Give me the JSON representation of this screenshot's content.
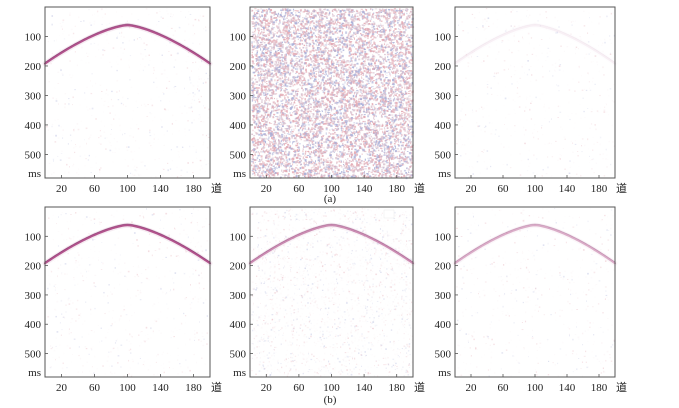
{
  "chart_data": [
    {
      "type": "heatmap",
      "row": "a",
      "column": 1,
      "content": "hyperbolic reflection event with weak noise",
      "x_ticks": [
        20,
        60,
        100,
        140,
        180
      ],
      "x_unit_label": "道",
      "y_ticks": [
        100,
        200,
        300,
        400,
        500
      ],
      "y_unit_label": "ms",
      "xlim": [
        0,
        200
      ],
      "ylim": [
        0,
        580
      ],
      "event": {
        "apex_trace": 100,
        "apex_time_ms": 62,
        "edge_time_ms": 192,
        "intensity": 1.0
      },
      "noise_level": 0.03
    },
    {
      "type": "heatmap",
      "row": "a",
      "column": 2,
      "content": "dense random noise",
      "x_ticks": [
        20,
        60,
        100,
        140,
        180
      ],
      "x_unit_label": "道",
      "y_ticks": [
        100,
        200,
        300,
        400,
        500
      ],
      "y_unit_label": "ms",
      "xlim": [
        0,
        200
      ],
      "ylim": [
        0,
        580
      ],
      "event": null,
      "noise_level": 1.0
    },
    {
      "type": "heatmap",
      "row": "a",
      "column": 3,
      "content": "residual with very faint event",
      "x_ticks": [
        20,
        60,
        100,
        140,
        180
      ],
      "x_unit_label": "道",
      "y_ticks": [
        100,
        200,
        300,
        400,
        500
      ],
      "y_unit_label": "ms",
      "xlim": [
        0,
        200
      ],
      "ylim": [
        0,
        580
      ],
      "event": {
        "apex_trace": 100,
        "apex_time_ms": 62,
        "edge_time_ms": 192,
        "intensity": 0.08
      },
      "noise_level": 0.02
    },
    {
      "type": "heatmap",
      "row": "b",
      "column": 1,
      "content": "hyperbolic reflection event with weak noise",
      "x_ticks": [
        20,
        60,
        100,
        140,
        180
      ],
      "x_unit_label": "道",
      "y_ticks": [
        100,
        200,
        300,
        400,
        500
      ],
      "y_unit_label": "ms",
      "xlim": [
        0,
        200
      ],
      "ylim": [
        0,
        580
      ],
      "event": {
        "apex_trace": 100,
        "apex_time_ms": 62,
        "edge_time_ms": 192,
        "intensity": 1.0
      },
      "noise_level": 0.03
    },
    {
      "type": "heatmap",
      "row": "b",
      "column": 2,
      "content": "event with moderate noise",
      "x_ticks": [
        20,
        60,
        100,
        140,
        180
      ],
      "x_unit_label": "道",
      "y_ticks": [
        100,
        200,
        300,
        400,
        500
      ],
      "y_unit_label": "ms",
      "xlim": [
        0,
        200
      ],
      "ylim": [
        0,
        580
      ],
      "event": {
        "apex_trace": 100,
        "apex_time_ms": 62,
        "edge_time_ms": 192,
        "intensity": 0.65
      },
      "noise_level": 0.28
    },
    {
      "type": "heatmap",
      "row": "b",
      "column": 3,
      "content": "event with weak noise",
      "x_ticks": [
        20,
        60,
        100,
        140,
        180
      ],
      "x_unit_label": "道",
      "y_ticks": [
        100,
        200,
        300,
        400,
        500
      ],
      "y_unit_label": "ms",
      "xlim": [
        0,
        200
      ],
      "ylim": [
        0,
        580
      ],
      "event": {
        "apex_trace": 100,
        "apex_time_ms": 62,
        "edge_time_ms": 192,
        "intensity": 0.45
      },
      "noise_level": 0.02
    }
  ],
  "captions": {
    "a": "(a)",
    "b": "(b)"
  },
  "colors": {
    "event_stroke": "#a63a7b",
    "event_halo": "#d8a7c4",
    "noise_red": "#e3a8b2",
    "noise_blue": "#a9afd8",
    "noise_light": "#f7ecef",
    "axis": "#555555",
    "text": "#222222",
    "panel_background": "#ffffff"
  },
  "icons": {
    "legend_square": "white-square"
  }
}
